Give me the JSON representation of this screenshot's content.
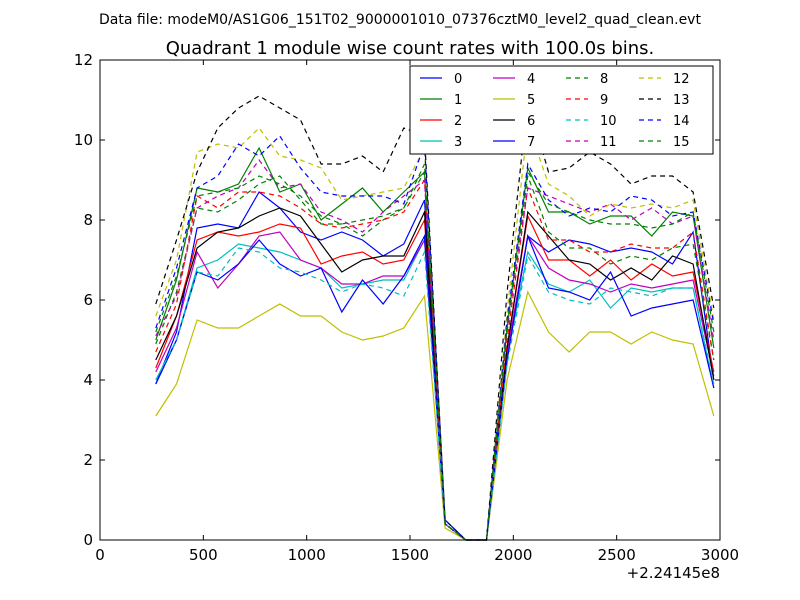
{
  "figure": {
    "suptitle": "Data file: modeM0/AS1G06_151T02_9000001010_07376cztM0_level2_quad_clean.evt",
    "offset_label": "+2.24145e8"
  },
  "chart_data": {
    "type": "line",
    "title": "Quadrant 1 module wise count rates with 100.0s bins.",
    "xlabel": "",
    "ylabel": "",
    "xlim": [
      0,
      3000
    ],
    "ylim": [
      0,
      12
    ],
    "x_offset": 224145000,
    "xticks": [
      0,
      500,
      1000,
      1500,
      2000,
      2500,
      3000
    ],
    "yticks": [
      0,
      2,
      4,
      6,
      8,
      10,
      12
    ],
    "grid": false,
    "legend": {
      "placement": "top-right",
      "columns": 4
    },
    "x": [
      270,
      370,
      470,
      570,
      670,
      770,
      870,
      970,
      1070,
      1170,
      1270,
      1370,
      1470,
      1570,
      1670,
      1770,
      1870,
      1970,
      2070,
      2170,
      2270,
      2370,
      2470,
      2570,
      2670,
      2770,
      2870,
      2970
    ],
    "series": [
      {
        "name": "0",
        "color": "#0000ff",
        "dash": false,
        "values": [
          3.9,
          5.2,
          7.8,
          7.9,
          7.8,
          8.7,
          8.3,
          7.7,
          7.5,
          7.7,
          7.5,
          7.1,
          7.4,
          8.5,
          0.5,
          0.0,
          0.0,
          4.5,
          7.6,
          7.2,
          7.5,
          7.4,
          7.2,
          7.3,
          7.2,
          6.9,
          7.7,
          4.0
        ]
      },
      {
        "name": "1",
        "color": "#008000",
        "dash": false,
        "values": [
          5.0,
          6.5,
          8.8,
          8.7,
          8.9,
          9.8,
          8.7,
          8.9,
          8.0,
          8.4,
          8.8,
          8.2,
          8.7,
          9.2,
          0.4,
          0.0,
          0.0,
          5.3,
          9.3,
          8.2,
          8.2,
          7.9,
          8.1,
          8.1,
          7.6,
          8.2,
          8.1,
          4.8
        ]
      },
      {
        "name": "2",
        "color": "#ff0000",
        "dash": false,
        "values": [
          4.3,
          5.6,
          7.5,
          7.7,
          7.6,
          7.7,
          7.9,
          7.8,
          6.9,
          7.1,
          7.2,
          6.9,
          7.0,
          8.0,
          0.4,
          0.0,
          0.0,
          4.8,
          8.1,
          7.0,
          7.0,
          6.6,
          7.0,
          6.5,
          6.9,
          6.6,
          6.7,
          4.2
        ]
      },
      {
        "name": "3",
        "color": "#00bfbf",
        "dash": false,
        "values": [
          4.0,
          5.0,
          6.8,
          7.0,
          7.4,
          7.3,
          7.2,
          7.0,
          6.8,
          6.3,
          6.4,
          6.5,
          6.5,
          7.5,
          0.4,
          0.0,
          0.0,
          4.6,
          7.2,
          6.4,
          6.2,
          6.5,
          5.8,
          6.3,
          6.2,
          6.3,
          6.3,
          3.8
        ]
      },
      {
        "name": "4",
        "color": "#bf00bf",
        "dash": false,
        "values": [
          4.2,
          5.3,
          7.2,
          6.3,
          6.9,
          7.6,
          7.7,
          7.0,
          6.8,
          6.4,
          6.4,
          6.6,
          6.6,
          7.5,
          0.4,
          0.0,
          0.0,
          4.7,
          7.6,
          6.8,
          6.5,
          6.4,
          6.2,
          6.4,
          6.3,
          6.4,
          6.5,
          4.1
        ]
      },
      {
        "name": "5",
        "color": "#bfbf00",
        "dash": false,
        "values": [
          3.1,
          3.9,
          5.5,
          5.3,
          5.3,
          5.6,
          5.9,
          5.6,
          5.6,
          5.2,
          5.0,
          5.1,
          5.3,
          6.1,
          0.3,
          0.0,
          0.0,
          4.0,
          6.2,
          5.2,
          4.7,
          5.2,
          5.2,
          4.9,
          5.2,
          5.0,
          4.9,
          3.1
        ]
      },
      {
        "name": "6",
        "color": "#000000",
        "dash": false,
        "values": [
          4.5,
          5.6,
          7.3,
          7.7,
          7.8,
          8.1,
          8.3,
          8.1,
          7.4,
          6.7,
          7.0,
          7.1,
          7.1,
          8.2,
          0.4,
          0.0,
          0.0,
          4.8,
          8.2,
          7.6,
          7.0,
          6.9,
          6.5,
          6.8,
          6.5,
          7.1,
          6.9,
          4.0
        ]
      },
      {
        "name": "7",
        "color": "#0000ff",
        "dash": false,
        "values": [
          3.9,
          5.0,
          6.7,
          6.5,
          6.9,
          7.5,
          6.9,
          6.6,
          6.8,
          5.7,
          6.5,
          5.9,
          6.6,
          7.6,
          0.4,
          0.0,
          0.0,
          4.5,
          7.6,
          6.3,
          6.2,
          6.0,
          6.7,
          5.6,
          5.8,
          5.9,
          6.0,
          3.8
        ]
      },
      {
        "name": "8",
        "color": "#008000",
        "dash": true,
        "values": [
          4.9,
          6.2,
          8.3,
          8.2,
          8.5,
          8.9,
          9.1,
          8.5,
          7.9,
          7.9,
          7.6,
          8.0,
          8.3,
          9.2,
          0.4,
          0.0,
          0.0,
          5.2,
          9.1,
          7.7,
          7.3,
          7.3,
          6.9,
          7.1,
          7.0,
          7.3,
          7.4,
          4.5
        ]
      },
      {
        "name": "9",
        "color": "#ff0000",
        "dash": true,
        "values": [
          4.7,
          5.9,
          8.6,
          8.3,
          8.7,
          8.7,
          8.6,
          8.3,
          7.9,
          7.8,
          7.9,
          8.0,
          8.2,
          9.0,
          0.4,
          0.0,
          0.0,
          5.0,
          8.8,
          7.5,
          7.5,
          7.2,
          7.2,
          7.4,
          7.3,
          7.3,
          7.7,
          4.5
        ]
      },
      {
        "name": "10",
        "color": "#00bfbf",
        "dash": true,
        "values": [
          4.0,
          5.0,
          6.7,
          6.6,
          7.3,
          7.2,
          6.8,
          6.7,
          6.5,
          6.2,
          6.4,
          6.3,
          6.1,
          7.2,
          0.4,
          0.0,
          0.0,
          4.4,
          7.1,
          6.2,
          6.0,
          5.9,
          6.3,
          6.2,
          6.1,
          6.3,
          6.3,
          3.9
        ]
      },
      {
        "name": "11",
        "color": "#bf00bf",
        "dash": true,
        "values": [
          5.1,
          6.1,
          8.3,
          8.6,
          8.8,
          9.5,
          8.8,
          8.9,
          8.2,
          8.0,
          7.7,
          8.2,
          8.6,
          9.0,
          0.4,
          0.0,
          0.0,
          5.3,
          8.8,
          8.6,
          8.4,
          8.2,
          8.4,
          8.0,
          8.3,
          7.9,
          8.1,
          5.0
        ]
      },
      {
        "name": "12",
        "color": "#bfbf00",
        "dash": true,
        "values": [
          5.6,
          7.0,
          9.7,
          9.9,
          9.8,
          10.3,
          9.6,
          9.5,
          9.3,
          8.5,
          8.6,
          8.7,
          8.8,
          9.8,
          0.5,
          0.0,
          0.0,
          5.7,
          10.4,
          8.9,
          8.6,
          8.1,
          8.4,
          8.3,
          8.4,
          8.3,
          8.5,
          5.5
        ]
      },
      {
        "name": "13",
        "color": "#000000",
        "dash": true,
        "values": [
          5.9,
          7.5,
          9.2,
          10.3,
          10.8,
          11.1,
          10.8,
          10.5,
          9.4,
          9.4,
          9.6,
          9.2,
          10.3,
          10.1,
          0.5,
          0.0,
          0.0,
          6.2,
          11.0,
          9.2,
          9.3,
          9.7,
          9.4,
          8.9,
          9.1,
          9.1,
          8.7,
          5.8
        ]
      },
      {
        "name": "14",
        "color": "#0000ff",
        "dash": true,
        "values": [
          5.3,
          6.8,
          8.8,
          9.1,
          9.9,
          9.6,
          10.1,
          9.3,
          8.7,
          8.6,
          8.6,
          8.6,
          8.4,
          9.9,
          0.5,
          0.0,
          0.0,
          5.5,
          9.4,
          8.5,
          8.1,
          8.3,
          8.2,
          8.6,
          8.5,
          8.1,
          8.2,
          5.4
        ]
      },
      {
        "name": "15",
        "color": "#008000",
        "dash": true,
        "values": [
          5.2,
          6.6,
          8.6,
          8.7,
          8.8,
          9.1,
          8.9,
          8.6,
          8.1,
          7.9,
          8.0,
          8.1,
          8.3,
          9.4,
          0.4,
          0.0,
          0.0,
          5.4,
          9.2,
          8.4,
          8.2,
          8.0,
          7.9,
          7.9,
          7.8,
          7.9,
          8.2,
          5.2
        ]
      }
    ]
  }
}
